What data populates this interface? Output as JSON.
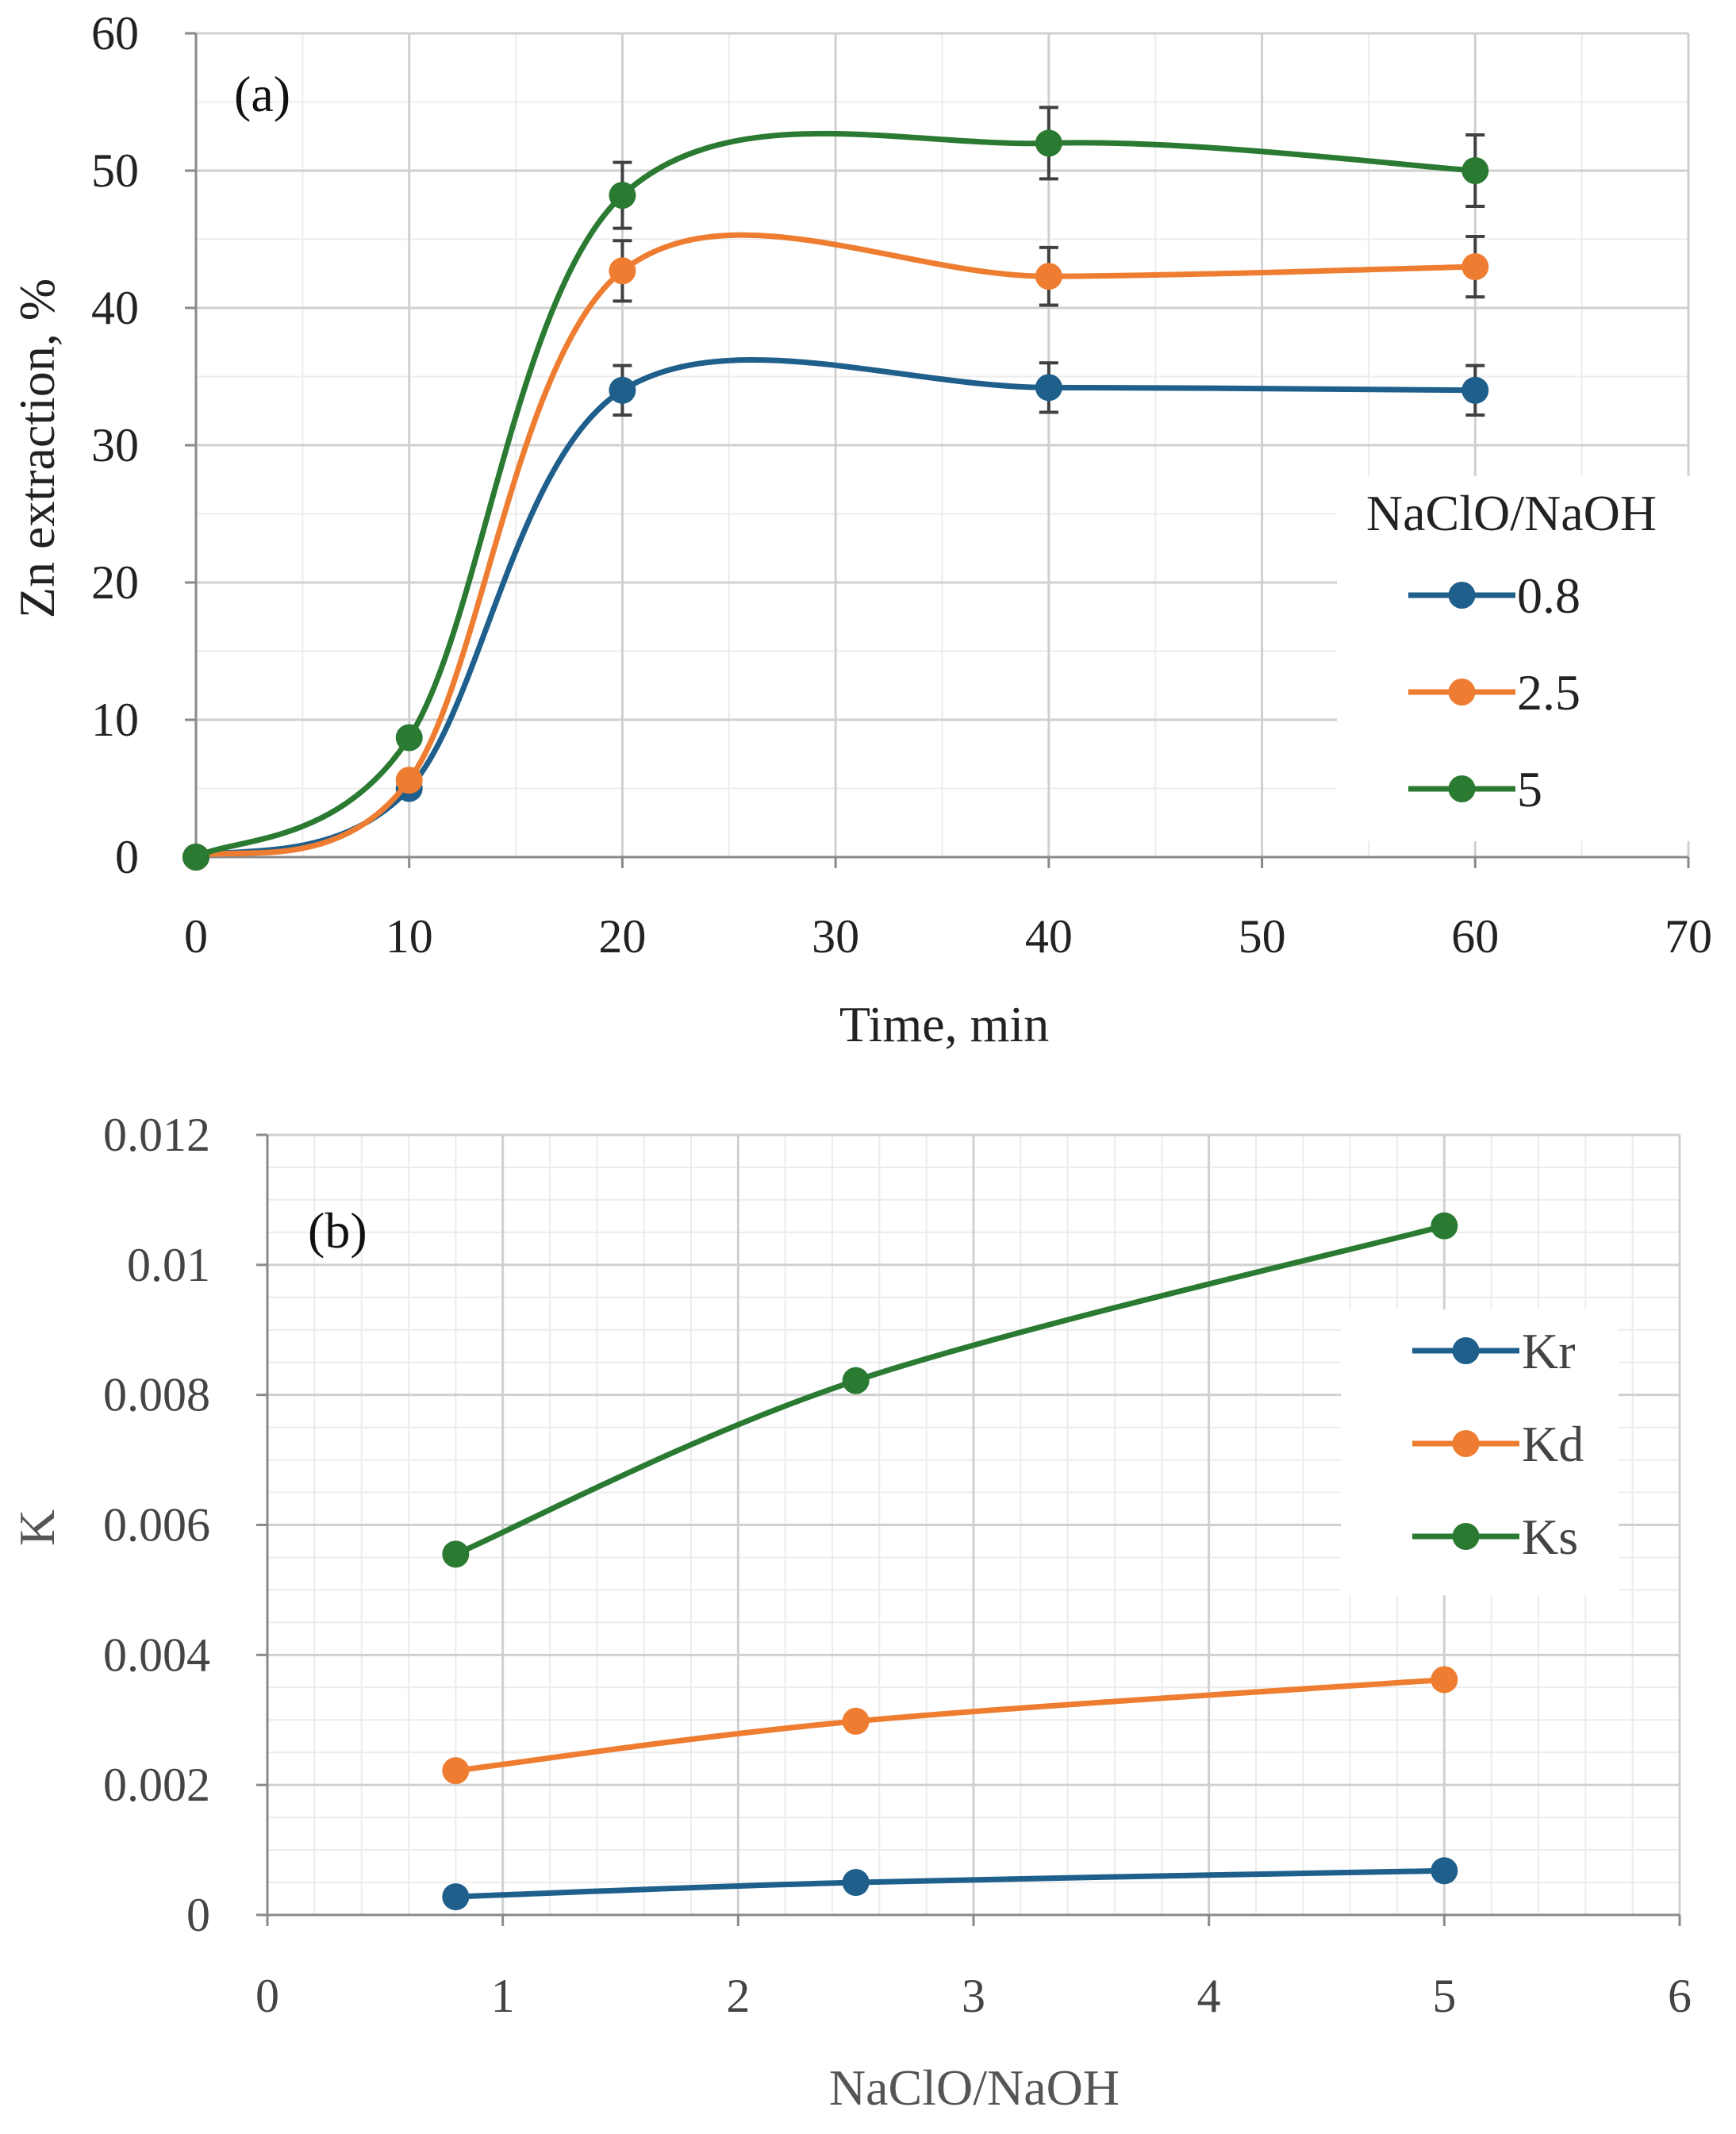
{
  "colors": {
    "blue": "#1f5f8b",
    "orange": "#ee7d31",
    "green": "#2a7a32"
  },
  "chart_data": [
    {
      "type": "line",
      "panel_label": "(a)",
      "xlabel": "Time, min",
      "ylabel": "Zn extraction, %",
      "xlim": [
        0,
        70
      ],
      "ylim": [
        0,
        60
      ],
      "xticks": [
        "0",
        "10",
        "20",
        "30",
        "40",
        "50",
        "60",
        "70"
      ],
      "yticks": [
        "0",
        "10",
        "20",
        "30",
        "40",
        "50",
        "60"
      ],
      "grid": true,
      "smooth": true,
      "error_bars": true,
      "legend_title": "NaClO/NaOH",
      "legend_position": "right",
      "x": [
        0,
        10,
        20,
        40,
        60
      ],
      "series": [
        {
          "name": "0.8",
          "color": "#1f5f8b",
          "values": [
            0,
            5,
            34,
            34.2,
            34
          ],
          "errors": [
            0,
            0,
            1.8,
            1.8,
            1.8
          ]
        },
        {
          "name": "2.5",
          "color": "#ee7d31",
          "values": [
            0,
            5.6,
            42.7,
            42.3,
            43
          ],
          "errors": [
            0,
            0,
            2.2,
            2.1,
            2.2
          ]
        },
        {
          "name": "5",
          "color": "#2a7a32",
          "values": [
            0,
            8.7,
            48.2,
            52,
            50
          ],
          "errors": [
            0,
            0,
            2.4,
            2.6,
            2.6
          ]
        }
      ]
    },
    {
      "type": "line",
      "panel_label": "(b)",
      "xlabel": "NaClO/NaOH",
      "ylabel": "K",
      "xlim": [
        0,
        6
      ],
      "ylim": [
        0,
        0.012
      ],
      "xticks": [
        "0",
        "1",
        "2",
        "3",
        "4",
        "5",
        "6"
      ],
      "yticks": [
        "0",
        "0.002",
        "0.004",
        "0.006",
        "0.008",
        "0.01",
        "0.012"
      ],
      "grid": true,
      "smooth": true,
      "legend_position": "right",
      "x": [
        0.8,
        2.5,
        5
      ],
      "series": [
        {
          "name": "Kr",
          "color": "#1f5f8b",
          "values": [
            0.00028,
            0.0005,
            0.00068
          ]
        },
        {
          "name": "Kd",
          "color": "#ee7d31",
          "values": [
            0.00222,
            0.00298,
            0.00362
          ]
        },
        {
          "name": "Ks",
          "color": "#2a7a32",
          "values": [
            0.00555,
            0.00822,
            0.0106
          ]
        }
      ]
    }
  ]
}
